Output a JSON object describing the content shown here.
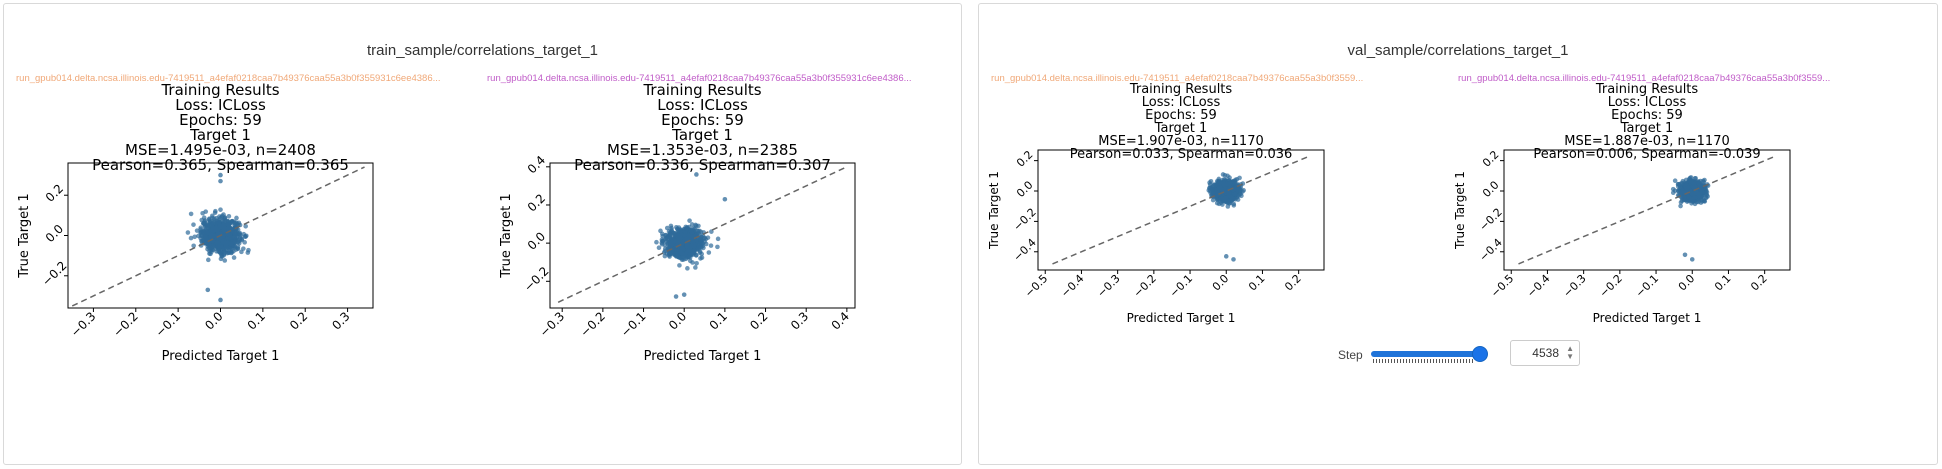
{
  "panels": [
    {
      "title": "train_sample/correlations_target_1",
      "plots": [
        {
          "run_label": "run_gpub014.delta.ncsa.illinois.edu-7419511_a4efaf0218caa7b49376caa55a3b0f355931c6ee4386...",
          "run_color": "#f0a878",
          "title_lines": [
            "Training Results",
            "Loss: ICLoss",
            "Epochs: 59",
            "Target 1",
            "MSE=1.495e-03, n=2408",
            "Pearson=0.365, Spearman=0.365"
          ],
          "xlabel": "Predicted Target 1",
          "ylabel": "True Target 1",
          "xticks": [
            "−0.3",
            "−0.2",
            "−0.1",
            "0.0",
            "0.1",
            "0.2",
            "0.3"
          ],
          "yticks": [
            "−0.2",
            "0.0",
            "0.2"
          ]
        },
        {
          "run_label": "run_gpub014.delta.ncsa.illinois.edu-7419511_a4efaf0218caa7b49376caa55a3b0f355931c6ee4386...",
          "run_color": "#c05cc8",
          "title_lines": [
            "Training Results",
            "Loss: ICLoss",
            "Epochs: 59",
            "Target 1",
            "MSE=1.353e-03, n=2385",
            "Pearson=0.336, Spearman=0.307"
          ],
          "xlabel": "Predicted Target 1",
          "ylabel": "True Target 1",
          "xticks": [
            "−0.3",
            "−0.2",
            "−0.1",
            "0.0",
            "0.1",
            "0.2",
            "0.3",
            "0.4"
          ],
          "yticks": [
            "−0.2",
            "0.0",
            "0.2",
            "0.4"
          ]
        }
      ]
    },
    {
      "title": "val_sample/correlations_target_1",
      "plots": [
        {
          "run_label": "run_gpub014.delta.ncsa.illinois.edu-7419511_a4efaf0218caa7b49376caa55a3b0f3559...",
          "run_color": "#f0a878",
          "title_lines": [
            "Training Results",
            "Loss: ICLoss",
            "Epochs: 59",
            "Target 1",
            "MSE=1.907e-03, n=1170",
            "Pearson=0.033, Spearman=0.036"
          ],
          "xlabel": "Predicted Target 1",
          "ylabel": "True Target 1",
          "xticks": [
            "−0.5",
            "−0.4",
            "−0.3",
            "−0.2",
            "−0.1",
            "0.0",
            "0.1",
            "0.2"
          ],
          "yticks": [
            "−0.4",
            "−0.2",
            "0.0",
            "0.2"
          ]
        },
        {
          "run_label": "run_gpub014.delta.ncsa.illinois.edu-7419511_a4efaf0218caa7b49376caa55a3b0f3559...",
          "run_color": "#c05cc8",
          "title_lines": [
            "Training Results",
            "Loss: ICLoss",
            "Epochs: 59",
            "Target 1",
            "MSE=1.887e-03, n=1170",
            "Pearson=0.006, Spearman=-0.039"
          ],
          "xlabel": "Predicted Target 1",
          "ylabel": "True Target 1",
          "xticks": [
            "−0.5",
            "−0.4",
            "−0.3",
            "−0.2",
            "−0.1",
            "0.0",
            "0.1",
            "0.2"
          ],
          "yticks": [
            "−0.4",
            "−0.2",
            "0.0",
            "0.2"
          ]
        }
      ],
      "step": {
        "label": "Step",
        "value": "4538",
        "slider_fraction": 1.0
      }
    }
  ],
  "colors": {
    "points": "#2f6b9a",
    "diagonal": "#666666",
    "accent": "#1a73e8"
  },
  "chart_data": [
    {
      "type": "scatter",
      "title": "Training Results",
      "xlabel": "Predicted Target 1",
      "ylabel": "True Target 1",
      "xlim": [
        -0.36,
        0.36
      ],
      "ylim": [
        -0.36,
        0.36
      ],
      "diagonal": [
        [
          -0.35,
          -0.35
        ],
        [
          0.34,
          0.34
        ]
      ],
      "cluster": {
        "center": [
          0.0,
          0.0
        ],
        "x_spread": 0.04,
        "y_spread": 0.09,
        "n": 2408
      },
      "outliers": [
        [
          0.0,
          0.3
        ],
        [
          0.0,
          0.27
        ],
        [
          0.0,
          -0.32
        ],
        [
          -0.03,
          -0.27
        ]
      ]
    },
    {
      "type": "scatter",
      "title": "Training Results",
      "xlabel": "Predicted Target 1",
      "ylabel": "True Target 1",
      "xlim": [
        -0.33,
        0.42
      ],
      "ylim": [
        -0.34,
        0.42
      ],
      "diagonal": [
        [
          -0.31,
          -0.31
        ],
        [
          0.4,
          0.4
        ]
      ],
      "cluster": {
        "center": [
          0.0,
          0.0
        ],
        "x_spread": 0.04,
        "y_spread": 0.08,
        "n": 2385
      },
      "outliers": [
        [
          0.03,
          0.36
        ],
        [
          0.1,
          0.23
        ],
        [
          -0.02,
          -0.28
        ],
        [
          0.0,
          -0.27
        ]
      ]
    },
    {
      "type": "scatter",
      "title": "Training Results",
      "xlabel": "Predicted Target 1",
      "ylabel": "True Target 1",
      "xlim": [
        -0.52,
        0.27
      ],
      "ylim": [
        -0.52,
        0.27
      ],
      "diagonal": [
        [
          -0.48,
          -0.48
        ],
        [
          0.23,
          0.23
        ]
      ],
      "cluster": {
        "center": [
          0.0,
          0.0
        ],
        "x_spread": 0.03,
        "y_spread": 0.07,
        "n": 1170
      },
      "outliers": [
        [
          0.0,
          -0.43
        ],
        [
          0.02,
          -0.45
        ]
      ]
    },
    {
      "type": "scatter",
      "title": "Training Results",
      "xlabel": "Predicted Target 1",
      "ylabel": "True Target 1",
      "xlim": [
        -0.52,
        0.27
      ],
      "ylim": [
        -0.52,
        0.27
      ],
      "diagonal": [
        [
          -0.48,
          -0.48
        ],
        [
          0.23,
          0.23
        ]
      ],
      "cluster": {
        "center": [
          0.0,
          0.0
        ],
        "x_spread": 0.03,
        "y_spread": 0.07,
        "n": 1170
      },
      "outliers": [
        [
          -0.02,
          -0.42
        ],
        [
          0.0,
          -0.45
        ]
      ]
    }
  ]
}
